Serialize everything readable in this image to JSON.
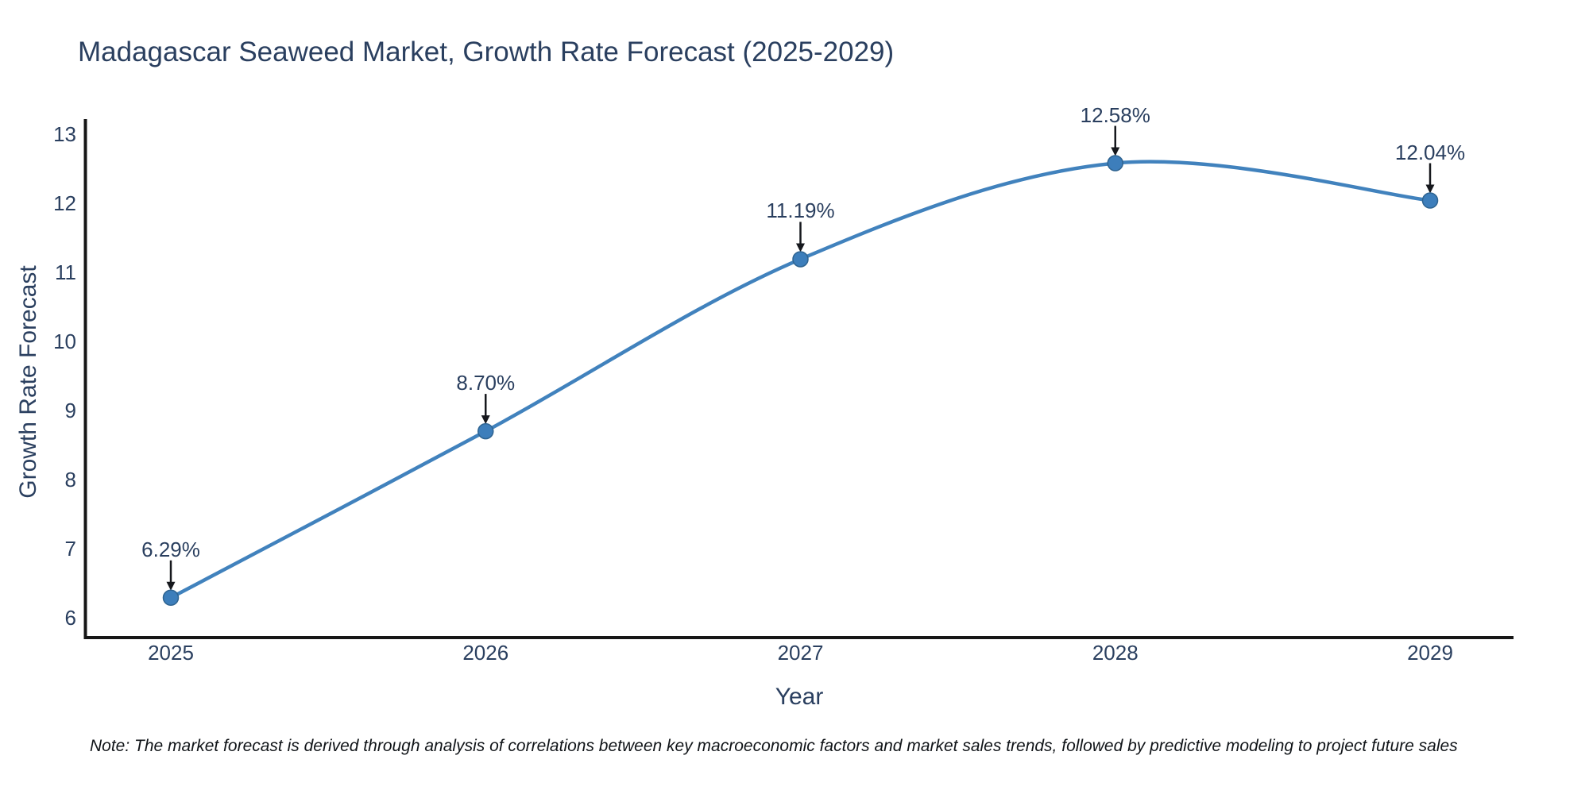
{
  "chart_data": {
    "type": "line",
    "line_shape": "spline",
    "title": "Madagascar Seaweed Market, Growth Rate Forecast (2025-2029)",
    "xlabel": "Year",
    "ylabel": "Growth Rate Forecast",
    "categories": [
      "2025",
      "2026",
      "2027",
      "2028",
      "2029"
    ],
    "series": [
      {
        "name": "Growth Rate Forecast",
        "values": [
          6.29,
          8.7,
          11.19,
          12.58,
          12.04
        ]
      }
    ],
    "point_labels": [
      "6.29%",
      "8.70%",
      "11.19%",
      "12.58%",
      "12.04%"
    ],
    "y_ticks": [
      6,
      7,
      8,
      9,
      10,
      11,
      12,
      13
    ],
    "ylim": [
      5.75,
      13.2
    ],
    "grid": false,
    "legend_position": "none",
    "markers": true,
    "annotations": "value labels with down arrows above each point",
    "colors": {
      "line": "#4182bd",
      "marker_fill": "#3d7ebb",
      "marker_edge": "#2e6390",
      "axis": "#161616",
      "text": "#2a3f5f",
      "arrow": "#16181d",
      "background": "#ffffff"
    }
  },
  "note": {
    "text": "Note: The market forecast is derived through analysis of correlations between key macroeconomic factors and market sales trends, followed by predictive modeling to project future sales"
  }
}
